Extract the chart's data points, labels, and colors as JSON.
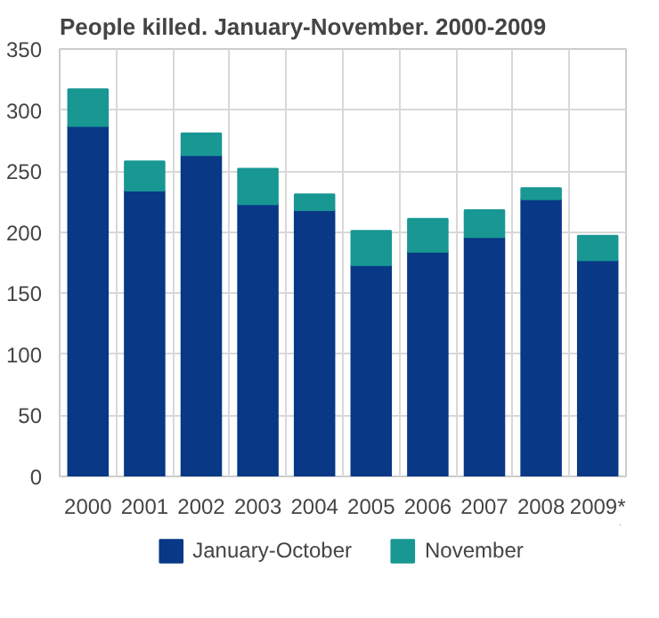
{
  "chart_data": {
    "type": "bar",
    "title": "People killed. January-November. 2000-2009",
    "categories": [
      "2000",
      "2001",
      "2002",
      "2003",
      "2004",
      "2005",
      "2006",
      "2007",
      "2008",
      "2009*"
    ],
    "stacked": true,
    "series": [
      {
        "name": "January-October",
        "color": "#083886",
        "values": [
          287,
          234,
          263,
          223,
          218,
          173,
          184,
          196,
          227,
          177
        ]
      },
      {
        "name": "November",
        "color": "#189793",
        "values": [
          30,
          24,
          18,
          29,
          13,
          28,
          27,
          22,
          9,
          20
        ]
      }
    ],
    "ylim": [
      0,
      350
    ],
    "yticks": [
      0,
      50,
      100,
      150,
      200,
      250,
      300,
      350
    ],
    "grid": true,
    "legend": "bottom"
  }
}
